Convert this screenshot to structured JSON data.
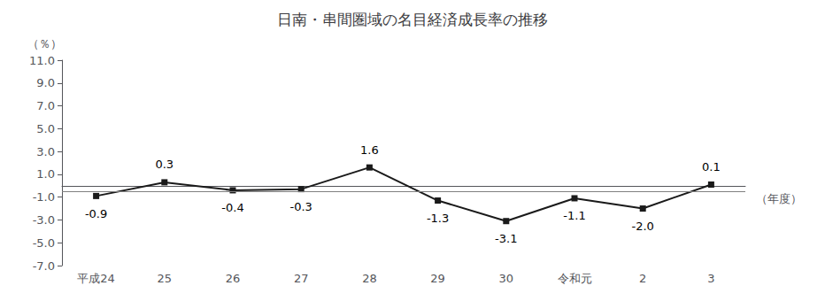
{
  "chart_data": {
    "type": "line",
    "title": "日南・串間圏域の名目経済成長率の推移",
    "ylabel": "（％）",
    "xlabel": "（年度）",
    "categories": [
      "平成24",
      "25",
      "26",
      "27",
      "28",
      "29",
      "30",
      "令和元",
      "2",
      "3"
    ],
    "values": [
      -0.9,
      0.3,
      -0.4,
      -0.3,
      1.6,
      -1.3,
      -3.1,
      -1.1,
      -2.0,
      0.1
    ],
    "value_labels": [
      "-0.9",
      "0.3",
      "-0.4",
      "-0.3",
      "1.6",
      "-1.3",
      "-3.1",
      "-1.1",
      "-2.0",
      "0.1"
    ],
    "data_labels": true,
    "reference_line": -0.5,
    "color": "#1a1a1a",
    "marker": "square",
    "ylim": [
      -7.0,
      11.0
    ],
    "yticks": [
      {
        "value": -7.0,
        "label": "-7.0"
      },
      {
        "value": -5.0,
        "label": "-5.0"
      },
      {
        "value": -3.0,
        "label": "-3.0"
      },
      {
        "value": -1.0,
        "label": "-1.0"
      },
      {
        "value": 1.0,
        "label": "1.0"
      },
      {
        "value": 3.0,
        "label": "3.0"
      },
      {
        "value": 5.0,
        "label": "5.0"
      },
      {
        "value": 7.0,
        "label": "7.0"
      },
      {
        "value": 9.0,
        "label": "9.0"
      },
      {
        "value": 11.0,
        "label": "11.0"
      }
    ],
    "grid": false
  }
}
